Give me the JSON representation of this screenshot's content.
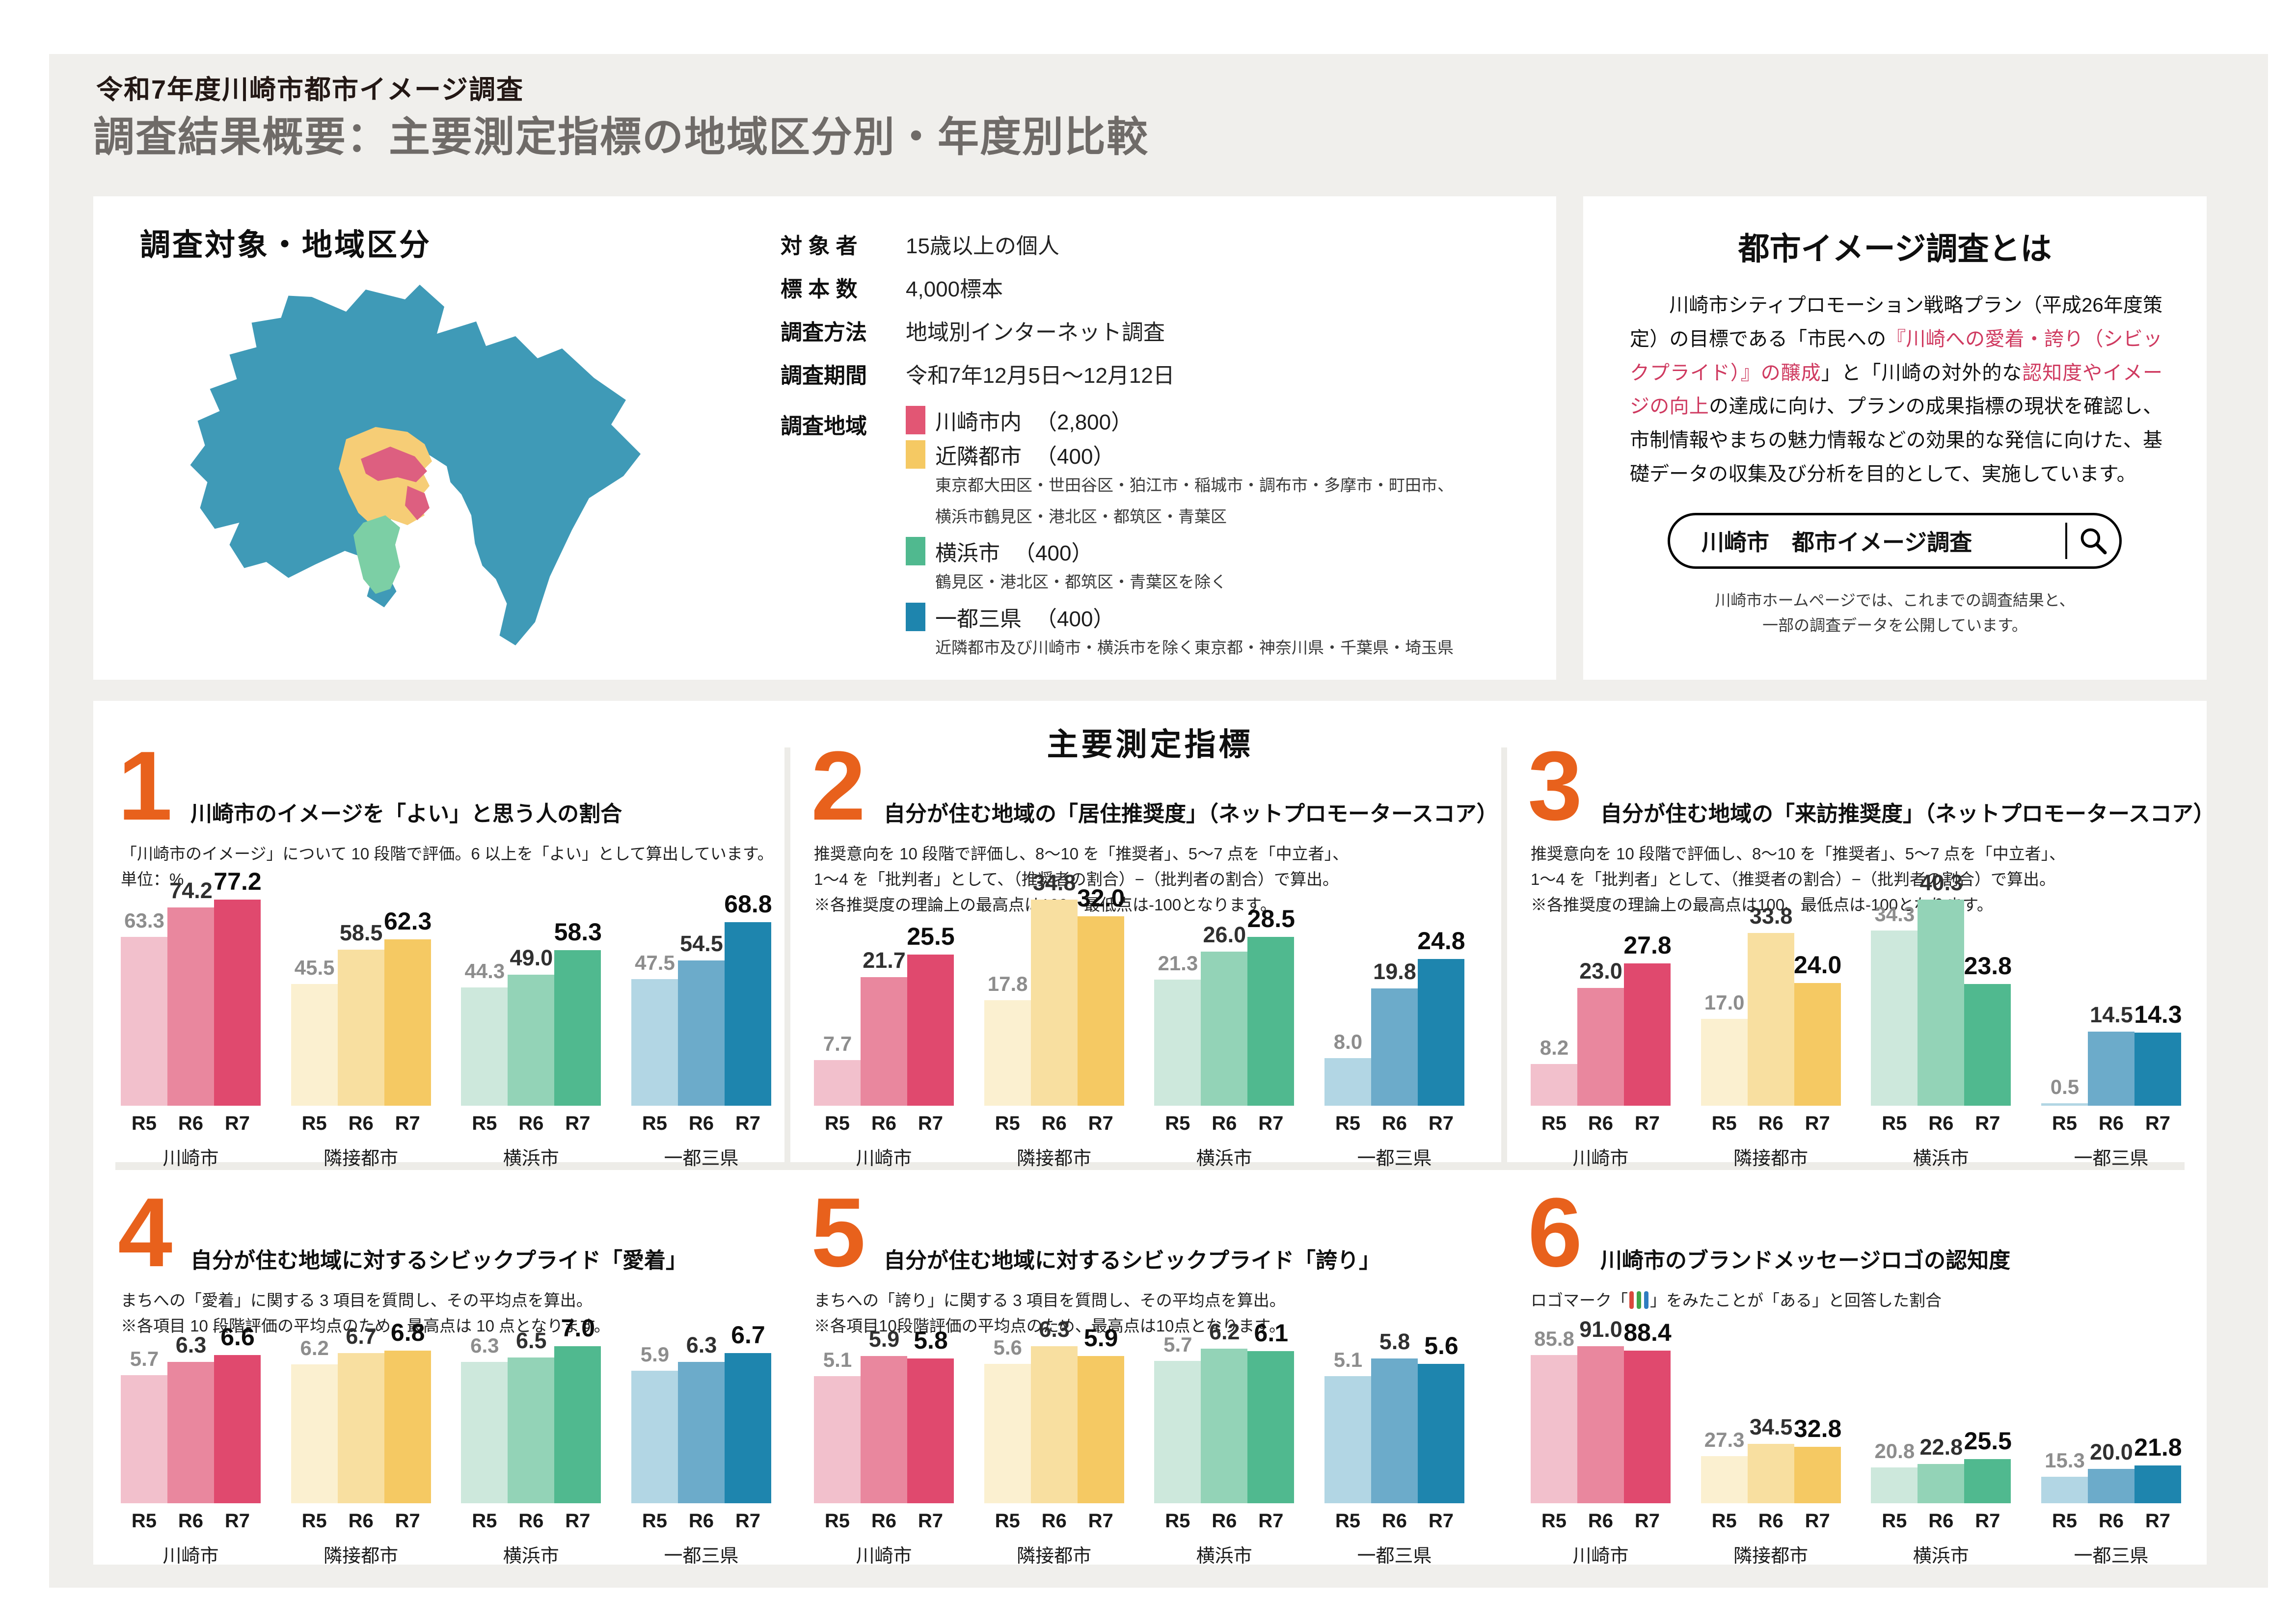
{
  "page": {
    "pretitle": "令和7年度川崎市都市イメージ調査",
    "title": "調査結果概要：主要測定指標の地域区分別・年度別比較"
  },
  "colors": {
    "accent_orange": "#e8611c",
    "page_background": "#f0efec",
    "divider": "#edece8",
    "red_text": "#cf3a60"
  },
  "map": {
    "land_color": "#3f9ab7",
    "neighbor_color": "#f6cd76",
    "kawasaki_color": "#dd5f80",
    "yokohama_color": "#7ccfa5",
    "sea_color": "#ffffff"
  },
  "survey_panel": {
    "title": "調査対象・地域区分",
    "fields": [
      {
        "label": "対 象 者",
        "value": "15歳以上の個人"
      },
      {
        "label": "標 本 数",
        "value": "4,000標本"
      },
      {
        "label": "調査方法",
        "value": "地域別インターネット調査"
      },
      {
        "label": "調査期間",
        "value": "令和7年12月5日〜12月12日"
      }
    ],
    "area_label": "調査地域",
    "areas": [
      {
        "name": "川崎市内",
        "count": "（2,800）",
        "color": "#e25674",
        "notes": []
      },
      {
        "name": "近隣都市",
        "count": "（400）",
        "color": "#f5c963",
        "notes": [
          "東京都大田区・世田谷区・狛江市・稲城市・調布市・多摩市・町田市、",
          "横浜市鶴見区・港北区・都筑区・青葉区"
        ]
      },
      {
        "name": "横浜市",
        "count": "（400）",
        "color": "#50b98f",
        "notes": [
          "鶴見区・港北区・都筑区・青葉区を除く"
        ]
      },
      {
        "name": "一都三県",
        "count": "（400）",
        "color": "#1e85ae",
        "notes": [
          "近隣都市及び川崎市・横浜市を除く東京都・神奈川県・千葉県・埼玉県"
        ]
      }
    ]
  },
  "about_panel": {
    "title": "都市イメージ調査とは",
    "paragraph": [
      {
        "text": "　　川崎市シティプロモーション戦略プラン（平成26年度策定）の目標である「市民への",
        "red": false
      },
      {
        "text": "『川崎への愛着・誇り（シビックプライド）』の醸成",
        "red": true
      },
      {
        "text": "」と「川崎の対外的な",
        "red": false
      },
      {
        "text": "認知度やイメージの向上",
        "red": true
      },
      {
        "text": "の達成に向け、プランの成果指標の現状を確認し、市制情報やまちの魅力情報などの効果的な発信に向けた、基礎データの収集及び分析を目的として、実施しています。",
        "red": false
      }
    ],
    "search_text": "川崎市　都市イメージ調査",
    "search_icon": "magnifier-icon",
    "note_lines": [
      "川崎市ホームページでは、これまでの調査結果と、",
      "一部の調査データを公開しています。"
    ]
  },
  "metrics_panel": {
    "title": "主要測定指標",
    "years": [
      "R5",
      "R6",
      "R7"
    ],
    "bar_colors": [
      [
        "#f2c0cc",
        "#e9879e",
        "#e0496e"
      ],
      [
        "#fbf0d0",
        "#f8dfa0",
        "#f5c963"
      ],
      [
        "#cde8dc",
        "#93d3b7",
        "#50b98f"
      ],
      [
        "#b2d6e4",
        "#6cabca",
        "#1e85ae"
      ]
    ]
  },
  "chart_data": [
    {
      "type": "bar",
      "num": "1",
      "title": "川崎市のイメージを「よい」と思う人の割合",
      "subtitle_lines": [
        "「川崎市のイメージ」について 10 段階で評価。6 以上を「よい」として算出しています。",
        "単位：%"
      ],
      "categories": [
        "川崎市",
        "隣接都市",
        "横浜市",
        "一都三県"
      ],
      "years": [
        "R5",
        "R6",
        "R7"
      ],
      "series": [
        {
          "name": "川崎市",
          "values": [
            "63.3",
            "74.2",
            "77.2"
          ]
        },
        {
          "name": "隣接都市",
          "values": [
            "45.5",
            "58.5",
            "62.3"
          ]
        },
        {
          "name": "横浜市",
          "values": [
            "44.3",
            "49.0",
            "58.3"
          ]
        },
        {
          "name": "一都三県",
          "values": [
            "47.5",
            "54.5",
            "68.8"
          ]
        }
      ]
    },
    {
      "type": "bar",
      "num": "2",
      "title": "自分が住む地域の「居住推奨度」（ネットプロモータースコア）",
      "subtitle_lines": [
        "推奨意向を 10 段階で評価し、8〜10 を「推奨者」、5〜7 点を「中立者」、",
        "1〜4 を「批判者」として、（推奨者の割合）−（批判者の割合）で算出。",
        "※各推奨度の理論上の最高点は100、最低点は-100となります。"
      ],
      "categories": [
        "川崎市",
        "隣接都市",
        "横浜市",
        "一都三県"
      ],
      "years": [
        "R5",
        "R6",
        "R7"
      ],
      "series": [
        {
          "name": "川崎市",
          "values": [
            "7.7",
            "21.7",
            "25.5"
          ]
        },
        {
          "name": "隣接都市",
          "values": [
            "17.8",
            "34.8",
            "32.0"
          ]
        },
        {
          "name": "横浜市",
          "values": [
            "21.3",
            "26.0",
            "28.5"
          ]
        },
        {
          "name": "一都三県",
          "values": [
            "8.0",
            "19.8",
            "24.8"
          ]
        }
      ]
    },
    {
      "type": "bar",
      "num": "3",
      "title": "自分が住む地域の「来訪推奨度」（ネットプロモータースコア）",
      "subtitle_lines": [
        "推奨意向を 10 段階で評価し、8〜10 を「推奨者」、5〜7 点を「中立者」、",
        "1〜4 を「批判者」として、（推奨者の割合）−（批判者の割合）で算出。",
        "※各推奨度の理論上の最高点は100、最低点は-100となります。"
      ],
      "categories": [
        "川崎市",
        "隣接都市",
        "横浜市",
        "一都三県"
      ],
      "years": [
        "R5",
        "R6",
        "R7"
      ],
      "series": [
        {
          "name": "川崎市",
          "values": [
            "8.2",
            "23.0",
            "27.8"
          ]
        },
        {
          "name": "隣接都市",
          "values": [
            "17.0",
            "33.8",
            "24.0"
          ]
        },
        {
          "name": "横浜市",
          "values": [
            "34.3",
            "40.3",
            "23.8"
          ]
        },
        {
          "name": "一都三県",
          "values": [
            "0.5",
            "14.5",
            "14.3"
          ]
        }
      ]
    },
    {
      "type": "bar",
      "num": "4",
      "title": "自分が住む地域に対するシビックプライド「愛着」",
      "subtitle_lines": [
        "まちへの「愛着」に関する 3 項目を質問し、その平均点を算出。",
        "※各項目 10 段階評価の平均点のため、最高点は 10 点となります。"
      ],
      "categories": [
        "川崎市",
        "隣接都市",
        "横浜市",
        "一都三県"
      ],
      "years": [
        "R5",
        "R6",
        "R7"
      ],
      "series": [
        {
          "name": "川崎市",
          "values": [
            "5.7",
            "6.3",
            "6.6"
          ]
        },
        {
          "name": "隣接都市",
          "values": [
            "6.2",
            "6.7",
            "6.8"
          ]
        },
        {
          "name": "横浜市",
          "values": [
            "6.3",
            "6.5",
            "7.0"
          ]
        },
        {
          "name": "一都三県",
          "values": [
            "5.9",
            "6.3",
            "6.7"
          ]
        }
      ]
    },
    {
      "type": "bar",
      "num": "5",
      "title": "自分が住む地域に対するシビックプライド「誇り」",
      "subtitle_lines": [
        "まちへの「誇り」に関する 3 項目を質問し、その平均点を算出。",
        "※各項目10段階評価の平均点のため、最高点は10点となります。"
      ],
      "categories": [
        "川崎市",
        "隣接都市",
        "横浜市",
        "一都三県"
      ],
      "years": [
        "R5",
        "R6",
        "R7"
      ],
      "series": [
        {
          "name": "川崎市",
          "values": [
            "5.1",
            "5.9",
            "5.8"
          ]
        },
        {
          "name": "隣接都市",
          "values": [
            "5.6",
            "6.3",
            "5.9"
          ]
        },
        {
          "name": "横浜市",
          "values": [
            "5.7",
            "6.2",
            "6.1"
          ]
        },
        {
          "name": "一都三県",
          "values": [
            "5.1",
            "5.8",
            "5.6"
          ]
        }
      ]
    },
    {
      "type": "bar",
      "num": "6",
      "title": "川崎市のブランドメッセージロゴの認知度",
      "subtitle_prefix": "ロゴマーク「",
      "subtitle_suffix": "」をみたことが「ある」と回答した割合",
      "logo_colors": [
        "#d94a3d",
        "#3fa548",
        "#2f7dc0"
      ],
      "categories": [
        "川崎市",
        "隣接都市",
        "横浜市",
        "一都三県"
      ],
      "years": [
        "R5",
        "R6",
        "R7"
      ],
      "series": [
        {
          "name": "川崎市",
          "values": [
            "85.8",
            "91.0",
            "88.4"
          ]
        },
        {
          "name": "隣接都市",
          "values": [
            "27.3",
            "34.5",
            "32.8"
          ]
        },
        {
          "name": "横浜市",
          "values": [
            "20.8",
            "22.8",
            "25.5"
          ]
        },
        {
          "name": "一都三県",
          "values": [
            "15.3",
            "20.0",
            "21.8"
          ]
        }
      ]
    }
  ]
}
